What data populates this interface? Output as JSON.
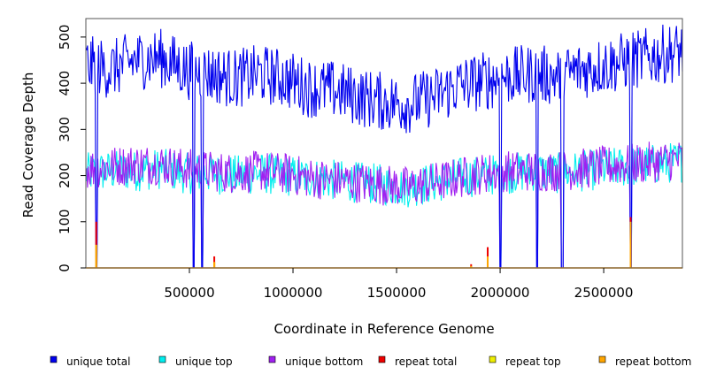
{
  "chart_data": {
    "type": "line",
    "xlabel": "Coordinate in Reference Genome",
    "ylabel": "Read Coverage Depth",
    "xlim": [
      0,
      2880000
    ],
    "ylim": [
      0,
      540
    ],
    "x_ticks": [
      500000,
      1000000,
      1500000,
      2000000,
      2500000
    ],
    "x_tick_labels": [
      "500000",
      "1000000",
      "1500000",
      "2000000",
      "2500000"
    ],
    "y_ticks": [
      0,
      100,
      200,
      300,
      400,
      500
    ],
    "y_tick_labels": [
      "0",
      "100",
      "200",
      "300",
      "400",
      "500"
    ],
    "grid": false,
    "legend_position": "bottom",
    "series": [
      {
        "name": "unique total",
        "color": "#0000ee",
        "x": [
          0,
          120000,
          240000,
          360000,
          480000,
          600000,
          720000,
          840000,
          960000,
          1080000,
          1200000,
          1320000,
          1440000,
          1560000,
          1680000,
          1800000,
          1920000,
          2040000,
          2160000,
          2280000,
          2400000,
          2520000,
          2640000,
          2760000,
          2880000
        ],
        "values": [
          440,
          430,
          450,
          455,
          430,
          420,
          410,
          420,
          410,
          390,
          385,
          370,
          360,
          355,
          370,
          395,
          405,
          415,
          420,
          415,
          430,
          440,
          450,
          460,
          470
        ]
      },
      {
        "name": "unique top",
        "color": "#00eeee",
        "x": [
          0,
          120000,
          240000,
          360000,
          480000,
          600000,
          720000,
          840000,
          960000,
          1080000,
          1200000,
          1320000,
          1440000,
          1560000,
          1680000,
          1800000,
          1920000,
          2040000,
          2160000,
          2280000,
          2400000,
          2520000,
          2640000,
          2760000,
          2880000
        ],
        "values": [
          205,
          210,
          210,
          215,
          205,
          205,
          200,
          205,
          200,
          195,
          190,
          185,
          180,
          175,
          185,
          195,
          200,
          205,
          210,
          205,
          210,
          215,
          220,
          225,
          230
        ]
      },
      {
        "name": "unique bottom",
        "color": "#a020f0",
        "x": [
          0,
          120000,
          240000,
          360000,
          480000,
          600000,
          720000,
          840000,
          960000,
          1080000,
          1200000,
          1320000,
          1440000,
          1560000,
          1680000,
          1800000,
          1920000,
          2040000,
          2160000,
          2280000,
          2400000,
          2520000,
          2640000,
          2760000,
          2880000
        ],
        "values": [
          215,
          220,
          225,
          225,
          215,
          210,
          205,
          210,
          205,
          195,
          190,
          185,
          180,
          175,
          185,
          195,
          205,
          210,
          210,
          210,
          215,
          220,
          225,
          230,
          235
        ]
      },
      {
        "name": "repeat total",
        "color": "#ee0000",
        "x": [
          50000,
          620000,
          1860000,
          1940000,
          2630000
        ],
        "values": [
          100,
          25,
          8,
          45,
          110
        ]
      },
      {
        "name": "repeat top",
        "color": "#eeee00",
        "x": [
          50000,
          620000,
          1860000,
          1940000,
          2630000
        ],
        "values": [
          50,
          12,
          4,
          20,
          55
        ]
      },
      {
        "name": "repeat bottom",
        "color": "#ffa500",
        "x": [
          50000,
          620000,
          1860000,
          1940000,
          2630000
        ],
        "values": [
          50,
          13,
          4,
          25,
          100
        ]
      }
    ],
    "dropouts_x": [
      50000,
      520000,
      560000,
      2000000,
      2180000,
      2300000,
      2630000
    ]
  }
}
